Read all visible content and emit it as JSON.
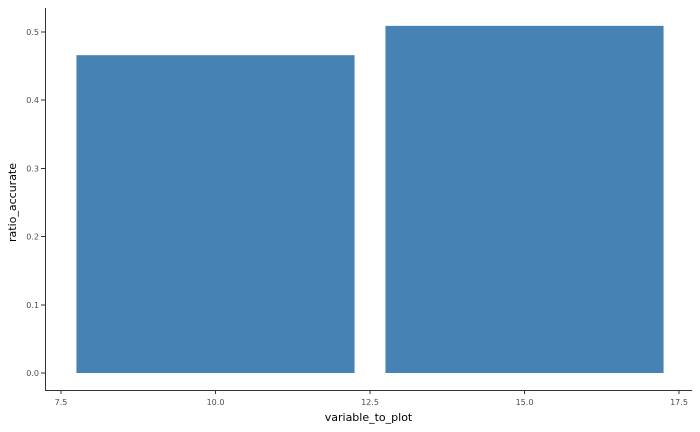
{
  "chart_data": {
    "type": "bar",
    "x": [
      10.0,
      15.0
    ],
    "values": [
      0.466,
      0.509
    ],
    "xlabel": "variable_to_plot",
    "ylabel": "ratio_accurate",
    "xlim": [
      7.5,
      17.5
    ],
    "ylim": [
      0.0,
      0.5
    ],
    "x_ticks": [
      7.5,
      10.0,
      12.5,
      15.0,
      17.5
    ],
    "x_tick_labels": [
      "7.5",
      "10.0",
      "12.5",
      "15.0",
      "17.5"
    ],
    "y_ticks": [
      0.0,
      0.1,
      0.2,
      0.3,
      0.4,
      0.5
    ],
    "y_tick_labels": [
      "0.0",
      "0.1",
      "0.2",
      "0.3",
      "0.4",
      "0.5"
    ],
    "bar_color": "#4682b4",
    "grid": false,
    "legend": "none"
  }
}
